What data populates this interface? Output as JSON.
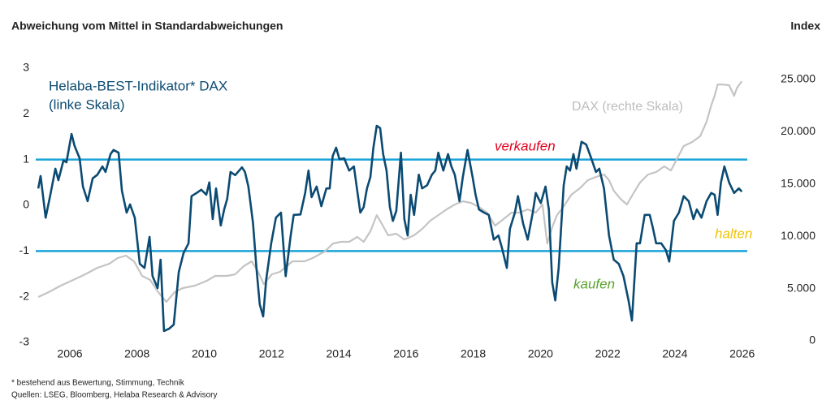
{
  "chart_data": {
    "type": "line",
    "title": "Abweichung vom Mittel in Standardabweichungen",
    "y2_label": "Index",
    "scale_note": "(linke Skala)",
    "xlim": [
      2005,
      2026.2
    ],
    "xticks": [
      2006,
      2008,
      2010,
      2012,
      2014,
      2016,
      2018,
      2020,
      2022,
      2024,
      2026
    ],
    "ylim": [
      -3,
      3
    ],
    "yticks": [
      -3,
      -2,
      -1,
      0,
      1,
      2,
      3
    ],
    "y2lim": [
      -155,
      26087
    ],
    "y2ticks": [
      0,
      {
        "value": 5000,
        "label": "5.000"
      },
      {
        "value": 10000,
        "label": "10.000"
      },
      {
        "value": 15000,
        "label": "15.000"
      },
      {
        "value": 20000,
        "label": "20.000"
      },
      {
        "value": 25000,
        "label": "25.000"
      }
    ],
    "reference_lines": [
      {
        "value": 1,
        "color": "#1aa3d8"
      },
      {
        "value": -1,
        "color": "#1aa3d8"
      }
    ],
    "annotations": [
      {
        "text": "verkaufen",
        "color": "#e3001b"
      },
      {
        "text": "halten",
        "color": "#f2c200"
      },
      {
        "text": "kaufen",
        "color": "#5aa12b"
      }
    ],
    "footnotes": [
      "* bestehend aus Bewertung, Stimmung, Technik",
      "Quellen: LSEG, Bloomberg, Helaba Research & Advisory"
    ],
    "series": [
      {
        "name": "DAX (rechte Skala)",
        "color": "#c4c4c4",
        "axis": "y2",
        "x": [
          2005.06,
          2005.37,
          2005.73,
          2006.1,
          2006.46,
          2006.82,
          2007.18,
          2007.42,
          2007.67,
          2007.91,
          2008.15,
          2008.39,
          2008.63,
          2008.87,
          2009.12,
          2009.36,
          2009.72,
          2010.08,
          2010.32,
          2010.68,
          2010.92,
          2011.17,
          2011.41,
          2011.6,
          2011.77,
          2012.01,
          2012.25,
          2012.62,
          2012.98,
          2013.22,
          2013.58,
          2013.83,
          2014.07,
          2014.31,
          2014.55,
          2014.74,
          2014.94,
          2015.13,
          2015.27,
          2015.47,
          2015.71,
          2015.95,
          2016.24,
          2016.48,
          2016.72,
          2016.96,
          2017.21,
          2017.45,
          2017.69,
          2017.93,
          2018.17,
          2018.41,
          2018.65,
          2018.9,
          2019.14,
          2019.38,
          2019.62,
          2019.86,
          2020.06,
          2020.2,
          2020.35,
          2020.49,
          2020.68,
          2020.92,
          2021.17,
          2021.41,
          2021.65,
          2021.89,
          2022.04,
          2022.18,
          2022.38,
          2022.57,
          2022.77,
          2022.96,
          2023.2,
          2023.44,
          2023.68,
          2023.88,
          2024.07,
          2024.26,
          2024.51,
          2024.75,
          2024.94,
          2025.08,
          2025.18,
          2025.27,
          2025.42,
          2025.61,
          2025.76,
          2025.85,
          2025.99
        ],
        "values": [
          4190,
          4660,
          5280,
          5820,
          6370,
          6990,
          7380,
          7920,
          8150,
          7610,
          6210,
          5820,
          4660,
          3730,
          4660,
          5050,
          5280,
          5750,
          6210,
          6210,
          6370,
          7140,
          7610,
          6600,
          5430,
          6370,
          6600,
          7610,
          7610,
          7920,
          8540,
          9320,
          9470,
          9470,
          9940,
          9470,
          10480,
          12030,
          11260,
          10090,
          10250,
          9700,
          10090,
          10710,
          11490,
          12030,
          12580,
          13040,
          13350,
          13200,
          12810,
          12270,
          11020,
          11650,
          12270,
          12270,
          12580,
          12270,
          13040,
          9320,
          10870,
          12030,
          12810,
          13980,
          14600,
          15370,
          15680,
          15920,
          15370,
          14360,
          13590,
          13040,
          14130,
          15140,
          15920,
          16150,
          16690,
          16300,
          17470,
          18630,
          19020,
          19570,
          20960,
          22520,
          23450,
          24530,
          24530,
          24460,
          23450,
          24220,
          24840
        ]
      },
      {
        "name": "Helaba-BEST-Indikator* DAX",
        "color": "#0b4a72",
        "axis": "y",
        "x": [
          2005.06,
          2005.13,
          2005.28,
          2005.42,
          2005.57,
          2005.66,
          2005.81,
          2005.9,
          2006.05,
          2006.14,
          2006.29,
          2006.39,
          2006.53,
          2006.68,
          2006.82,
          2006.97,
          2007.06,
          2007.21,
          2007.3,
          2007.45,
          2007.55,
          2007.69,
          2007.79,
          2007.93,
          2008.08,
          2008.22,
          2008.37,
          2008.46,
          2008.61,
          2008.7,
          2008.8,
          2008.95,
          2009.09,
          2009.24,
          2009.38,
          2009.53,
          2009.62,
          2009.77,
          2009.91,
          2010.06,
          2010.15,
          2010.25,
          2010.35,
          2010.49,
          2010.59,
          2010.68,
          2010.78,
          2010.92,
          2011.12,
          2011.21,
          2011.31,
          2011.45,
          2011.55,
          2011.65,
          2011.75,
          2011.84,
          2011.99,
          2012.13,
          2012.28,
          2012.42,
          2012.57,
          2012.66,
          2012.86,
          2013.0,
          2013.1,
          2013.19,
          2013.34,
          2013.48,
          2013.63,
          2013.73,
          2013.82,
          2013.92,
          2014.02,
          2014.16,
          2014.31,
          2014.45,
          2014.55,
          2014.64,
          2014.74,
          2014.84,
          2014.94,
          2015.03,
          2015.13,
          2015.23,
          2015.32,
          2015.42,
          2015.52,
          2015.61,
          2015.71,
          2015.85,
          2015.95,
          2016.05,
          2016.14,
          2016.24,
          2016.38,
          2016.48,
          2016.63,
          2016.77,
          2016.87,
          2016.96,
          2017.11,
          2017.25,
          2017.35,
          2017.45,
          2017.59,
          2017.69,
          2017.83,
          2017.98,
          2018.07,
          2018.17,
          2018.32,
          2018.46,
          2018.61,
          2018.75,
          2018.85,
          2019.0,
          2019.09,
          2019.24,
          2019.33,
          2019.48,
          2019.62,
          2019.77,
          2019.86,
          2020.01,
          2020.15,
          2020.25,
          2020.35,
          2020.44,
          2020.54,
          2020.69,
          2020.78,
          2020.88,
          2020.98,
          2021.07,
          2021.22,
          2021.36,
          2021.51,
          2021.65,
          2021.75,
          2021.89,
          2022.04,
          2022.18,
          2022.33,
          2022.47,
          2022.62,
          2022.72,
          2022.86,
          2022.96,
          2023.1,
          2023.25,
          2023.34,
          2023.44,
          2023.59,
          2023.73,
          2023.83,
          2023.97,
          2024.12,
          2024.26,
          2024.41,
          2024.55,
          2024.65,
          2024.79,
          2024.94,
          2025.08,
          2025.18,
          2025.27,
          2025.37,
          2025.47,
          2025.61,
          2025.76,
          2025.9,
          2025.99
        ],
        "values": [
          0.37,
          0.64,
          -0.27,
          0.23,
          0.8,
          0.55,
          0.98,
          0.94,
          1.56,
          1.3,
          1.03,
          0.41,
          0.09,
          0.59,
          0.67,
          0.85,
          0.73,
          1.12,
          1.21,
          1.15,
          0.32,
          -0.16,
          0.02,
          -0.27,
          -1.28,
          -1.37,
          -0.69,
          -1.55,
          -1.81,
          -1.19,
          -2.75,
          -2.7,
          -2.61,
          -1.46,
          -1.05,
          -0.83,
          0.2,
          0.27,
          0.34,
          0.23,
          0.5,
          -0.3,
          0.37,
          -0.44,
          -0.09,
          0.14,
          0.73,
          0.66,
          0.83,
          0.73,
          0.41,
          -0.39,
          -1.37,
          -2.17,
          -2.43,
          -1.63,
          -0.83,
          -0.27,
          -0.16,
          -1.55,
          -0.66,
          -0.21,
          -0.2,
          0.27,
          0.76,
          0.18,
          0.41,
          -0.02,
          0.37,
          0.37,
          1.08,
          1.26,
          1.01,
          1.03,
          0.76,
          0.85,
          0.32,
          -0.16,
          -0.04,
          0.37,
          0.62,
          1.26,
          1.74,
          1.69,
          1.12,
          0.76,
          -0.04,
          -0.34,
          -0.12,
          1.15,
          -0.3,
          -0.66,
          0.23,
          -0.21,
          0.67,
          0.37,
          0.44,
          0.67,
          0.76,
          1.15,
          0.76,
          1.12,
          0.85,
          0.67,
          0.09,
          0.62,
          1.21,
          0.62,
          0.23,
          -0.09,
          -0.16,
          -0.21,
          -0.75,
          -0.66,
          -0.92,
          -1.37,
          -0.52,
          -0.16,
          0.2,
          -0.39,
          -0.75,
          -0.16,
          0.27,
          0.05,
          0.41,
          -0.09,
          -1.69,
          -2.08,
          -1.37,
          0.44,
          0.85,
          0.76,
          1.12,
          0.8,
          1.39,
          1.33,
          1.03,
          0.73,
          0.8,
          0.37,
          -0.66,
          -1.19,
          -1.28,
          -1.55,
          -2.08,
          -2.52,
          -0.83,
          -0.83,
          -0.21,
          -0.21,
          -0.48,
          -0.83,
          -0.83,
          -0.98,
          -1.23,
          -0.34,
          -0.16,
          0.2,
          0.09,
          -0.3,
          -0.09,
          -0.27,
          0.09,
          0.27,
          0.23,
          -0.21,
          0.5,
          0.85,
          0.5,
          0.27,
          0.37,
          0.3
        ]
      }
    ]
  }
}
